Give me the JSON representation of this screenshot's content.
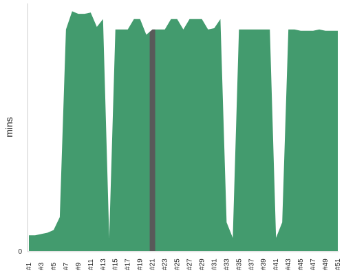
{
  "chart_data": {
    "type": "area",
    "ylabel": "mins",
    "y_ticks": [
      {
        "value": 0,
        "label": "0"
      }
    ],
    "ylim": [
      0,
      95
    ],
    "grid": false,
    "colors": {
      "area": "#439b6e",
      "highlight": "#595959",
      "axis": "#cccccc"
    },
    "highlight_category": "#21",
    "categories": [
      "#1",
      "#2",
      "#3",
      "#4",
      "#5",
      "#6",
      "#7",
      "#8",
      "#9",
      "#10",
      "#11",
      "#12",
      "#13",
      "#14",
      "#15",
      "#16",
      "#17",
      "#18",
      "#19",
      "#20",
      "#21",
      "#22",
      "#23",
      "#24",
      "#25",
      "#26",
      "#27",
      "#28",
      "#29",
      "#30",
      "#31",
      "#32",
      "#33",
      "#34",
      "#35",
      "#36",
      "#37",
      "#38",
      "#39",
      "#40",
      "#41",
      "#42",
      "#43",
      "#44",
      "#45",
      "#46",
      "#47",
      "#48",
      "#49",
      "#50",
      "#51"
    ],
    "tick_labels": [
      "#1",
      "#3",
      "#5",
      "#7",
      "#9",
      "#11",
      "#13",
      "#15",
      "#17",
      "#19",
      "#21",
      "#23",
      "#25",
      "#27",
      "#29",
      "#31",
      "#33",
      "#35",
      "#37",
      "#39",
      "#41",
      "#43",
      "#45",
      "#47",
      "#49",
      "#51"
    ],
    "values": [
      6,
      6,
      6.5,
      7,
      8,
      13,
      85,
      92,
      91,
      91,
      91.5,
      86,
      89,
      5,
      85,
      85,
      85,
      89,
      89,
      83,
      85,
      85,
      85,
      89,
      89,
      85,
      89,
      89,
      89,
      85,
      85.5,
      89,
      11,
      5,
      85,
      85,
      85,
      85,
      85,
      85,
      5,
      11,
      85,
      85,
      84.5,
      84.5,
      84.5,
      85,
      84.5,
      84.5,
      84.5
    ]
  }
}
